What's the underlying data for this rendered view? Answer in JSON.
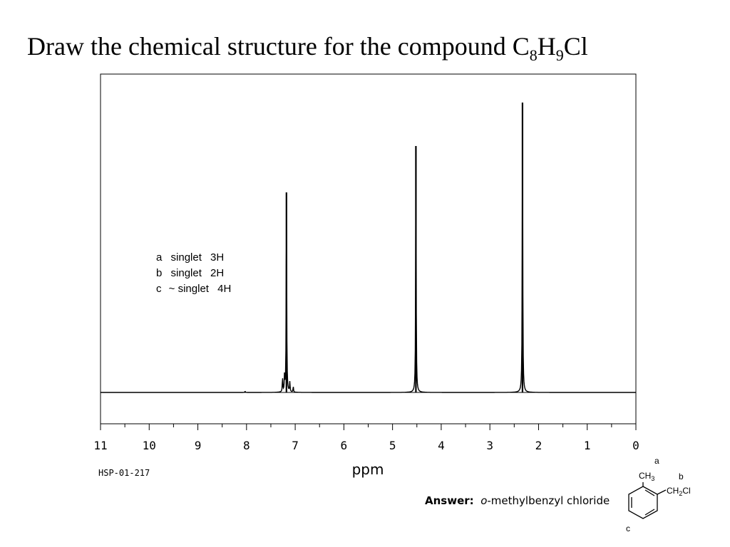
{
  "title": {
    "text": "Draw the chemical structure for the compound C",
    "h": "H",
    "cl": "Cl",
    "sub8": "8",
    "sub9": "9"
  },
  "chart_data": {
    "type": "line",
    "xlabel": "ppm",
    "xlim": [
      11,
      0
    ],
    "x_ticks": [
      "11",
      "10",
      "9",
      "8",
      "7",
      "6",
      "5",
      "4",
      "3",
      "2",
      "1",
      "0"
    ],
    "spectrum_code": "HSP-01-217",
    "peaks": [
      {
        "ppm": 7.18,
        "relative_height": 0.69,
        "label": "c"
      },
      {
        "ppm": 4.52,
        "relative_height": 0.85,
        "label": "b"
      },
      {
        "ppm": 2.33,
        "relative_height": 1.0,
        "label": "a"
      }
    ],
    "assignments": [
      {
        "label": "a",
        "multiplicity": "singlet",
        "integration": "3H"
      },
      {
        "label": "b",
        "multiplicity": "singlet",
        "integration": "2H"
      },
      {
        "label": "c",
        "multiplicity": "~ singlet",
        "integration": "4H"
      }
    ]
  },
  "answer": {
    "lead": "Answer:",
    "prefix": "o",
    "name": "-methylbenzyl chloride"
  },
  "structure": {
    "label_a": "a",
    "label_b": "b",
    "label_c": "c",
    "ch3": "CH",
    "ch3_sub": "3",
    "ch2cl_left": "CH",
    "ch2cl_sub": "2",
    "ch2cl_right": "Cl"
  }
}
